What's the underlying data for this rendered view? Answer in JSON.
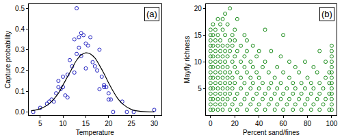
{
  "chart_data": [
    {
      "type": "scatter",
      "annotation": "(a)",
      "x_label": "Temperature",
      "y_label": "Capture probability",
      "xlim": [
        2.5,
        31.5
      ],
      "ylim": [
        -0.015,
        0.52
      ],
      "xticks": [
        5,
        10,
        15,
        20,
        25,
        30
      ],
      "yticks": [
        {
          "value": 0,
          "label": "0.0"
        },
        {
          "value": 0.1,
          "label": "0.1"
        },
        {
          "value": 0.2,
          "label": "0.2"
        },
        {
          "value": 0.3,
          "label": "0.3"
        },
        {
          "value": 0.4,
          "label": "0.4"
        },
        {
          "value": 0.5,
          "label": "0.5"
        }
      ],
      "grid": false,
      "series": [
        {
          "type": "scatter",
          "color": "#2020c0",
          "marker": "circle-open",
          "x": [
            3.5,
            5,
            6.5,
            7,
            7.5,
            8,
            8.5,
            9,
            9,
            9.5,
            10,
            10,
            10.5,
            11,
            11,
            11.5,
            12,
            12.5,
            12.5,
            13,
            13,
            13.5,
            13.5,
            14,
            14,
            14.5,
            15,
            15,
            15.5,
            16,
            16.5,
            17,
            17.5,
            18,
            18,
            18.5,
            19,
            19,
            19.5,
            20,
            20,
            20.5,
            21,
            23,
            24,
            25.5,
            30
          ],
          "values": [
            0.0,
            0.02,
            0.04,
            0.05,
            0.06,
            0.05,
            0.09,
            0.12,
            0.15,
            0.11,
            0.17,
            0.12,
            0.08,
            0.07,
            0.18,
            0.25,
            0.22,
            0.19,
            0.35,
            0.28,
            0.5,
            0.36,
            0.31,
            0.38,
            0.27,
            0.37,
            0.33,
            0.21,
            0.32,
            0.36,
            0.24,
            0.22,
            0.2,
            0.3,
            0.11,
            0.17,
            0.13,
            0.12,
            0.12,
            0.06,
            0.09,
            0.06,
            0.0,
            0.05,
            0.0,
            0.0,
            0.01
          ]
        },
        {
          "type": "line",
          "color": "#000000",
          "line_style": "solid",
          "x": [
            3,
            5,
            7,
            9,
            10,
            11,
            12,
            13,
            14,
            15,
            16,
            17,
            18,
            19,
            20,
            21,
            22,
            23,
            25,
            27,
            30
          ],
          "values": [
            0.005,
            0.015,
            0.04,
            0.09,
            0.13,
            0.17,
            0.21,
            0.25,
            0.275,
            0.285,
            0.28,
            0.26,
            0.225,
            0.185,
            0.14,
            0.1,
            0.065,
            0.04,
            0.012,
            0.003,
            0.0
          ]
        }
      ]
    },
    {
      "type": "scatter",
      "annotation": "(b)",
      "x_label": "Percent sand/fines",
      "y_label": "Mayfly richness",
      "xlim": [
        -4,
        104
      ],
      "ylim": [
        0,
        20.8
      ],
      "xticks": [
        0,
        20,
        40,
        60,
        80,
        100
      ],
      "yticks": [
        5,
        10,
        15,
        20
      ],
      "grid": false,
      "series": [
        {
          "type": "scatter",
          "color": "#1a8c1a",
          "marker": "circle-open",
          "x": [
            0,
            0,
            0,
            0,
            0,
            0,
            0,
            0,
            0,
            0,
            0,
            0,
            0,
            0,
            0,
            0,
            2,
            2,
            2,
            2,
            2,
            2,
            2,
            2,
            2,
            4,
            4,
            4,
            4,
            4,
            4,
            4,
            4,
            6,
            6,
            6,
            6,
            6,
            6,
            6,
            6,
            6,
            8,
            8,
            8,
            8,
            8,
            8,
            8,
            8,
            10,
            10,
            10,
            10,
            10,
            10,
            10,
            10,
            10,
            12,
            12,
            12,
            12,
            12,
            12,
            12,
            12,
            14,
            14,
            14,
            14,
            14,
            14,
            14,
            16,
            16,
            16,
            16,
            16,
            16,
            16,
            18,
            18,
            18,
            18,
            18,
            18,
            20,
            20,
            20,
            20,
            20,
            20,
            22,
            22,
            22,
            22,
            22,
            25,
            25,
            25,
            25,
            25,
            28,
            28,
            28,
            28,
            28,
            30,
            30,
            30,
            30,
            30,
            33,
            33,
            33,
            33,
            35,
            35,
            35,
            35,
            38,
            38,
            38,
            38,
            40,
            40,
            40,
            40,
            43,
            43,
            43,
            45,
            45,
            45,
            45,
            48,
            48,
            48,
            50,
            50,
            50,
            53,
            53,
            53,
            55,
            55,
            55,
            58,
            58,
            58,
            60,
            60,
            60,
            60,
            63,
            63,
            65,
            65,
            65,
            68,
            68,
            68,
            70,
            70,
            70,
            73,
            73,
            75,
            75,
            75,
            78,
            78,
            78,
            80,
            80,
            83,
            83,
            83,
            85,
            85,
            85,
            88,
            88,
            90,
            90,
            90,
            90,
            93,
            93,
            95,
            95,
            95,
            98,
            98,
            98,
            98,
            100,
            100,
            100,
            100,
            100,
            100,
            100,
            100,
            100,
            100,
            100,
            100,
            100
          ],
          "values": [
            1,
            2,
            3,
            4,
            5,
            6,
            7,
            8,
            9,
            10,
            11,
            12,
            13,
            14,
            15,
            16,
            1,
            3,
            5,
            7,
            9,
            11,
            13,
            15,
            17,
            2,
            4,
            6,
            8,
            10,
            12,
            14,
            16,
            1,
            3,
            5,
            7,
            9,
            11,
            13,
            15,
            18,
            2,
            4,
            6,
            8,
            10,
            12,
            14,
            17,
            1,
            3,
            5,
            7,
            9,
            11,
            13,
            16,
            18,
            2,
            4,
            6,
            8,
            10,
            12,
            15,
            19,
            3,
            5,
            7,
            9,
            11,
            13,
            17,
            1,
            4,
            6,
            8,
            12,
            14,
            20,
            2,
            5,
            7,
            10,
            13,
            15,
            3,
            6,
            9,
            11,
            14,
            16,
            1,
            4,
            8,
            12,
            18,
            2,
            5,
            7,
            10,
            13,
            3,
            6,
            9,
            11,
            15,
            1,
            4,
            8,
            12,
            14,
            2,
            5,
            7,
            10,
            3,
            6,
            9,
            13,
            1,
            4,
            8,
            11,
            2,
            5,
            7,
            12,
            3,
            6,
            9,
            1,
            4,
            10,
            16,
            2,
            5,
            8,
            3,
            6,
            12,
            1,
            4,
            7,
            2,
            5,
            9,
            3,
            6,
            11,
            1,
            4,
            8,
            15,
            2,
            5,
            3,
            7,
            10,
            1,
            4,
            6,
            2,
            5,
            9,
            3,
            8,
            1,
            4,
            6,
            2,
            5,
            10,
            3,
            7,
            1,
            4,
            6,
            2,
            5,
            9,
            3,
            8,
            1,
            4,
            6,
            12,
            2,
            5,
            3,
            7,
            10,
            1,
            4,
            6,
            8,
            1,
            2,
            3,
            4,
            5,
            6,
            7,
            8,
            9,
            10,
            11,
            12,
            13
          ]
        }
      ]
    }
  ]
}
